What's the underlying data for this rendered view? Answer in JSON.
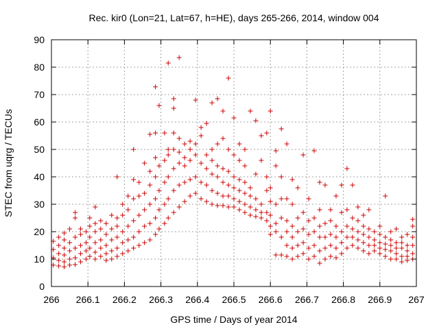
{
  "chart_data": {
    "type": "scatter",
    "title": "Rec. kir0 (Lon=21, Lat=67, h=HE), days 265-266, 2014, window 004",
    "xlabel": "GPS time / Days of year 2014",
    "ylabel": "STEC from uqrg / TECUs",
    "xlim": [
      266,
      267
    ],
    "ylim": [
      0,
      90
    ],
    "xticks": [
      "266",
      "266.1",
      "266.2",
      "266.3",
      "266.4",
      "266.5",
      "266.6",
      "266.7",
      "266.8",
      "266.9",
      "267"
    ],
    "yticks": [
      "0",
      "10",
      "20",
      "30",
      "40",
      "50",
      "60",
      "70",
      "80",
      "90"
    ],
    "grid": true,
    "marker": "+",
    "color": "#cc0000",
    "points": [
      [
        266.005,
        7.8
      ],
      [
        266.005,
        10.5
      ],
      [
        266.005,
        13.5
      ],
      [
        266.005,
        16.5
      ],
      [
        266.02,
        7.5
      ],
      [
        266.02,
        9.5
      ],
      [
        266.02,
        12
      ],
      [
        266.02,
        15
      ],
      [
        266.02,
        18
      ],
      [
        266.035,
        7.2
      ],
      [
        266.035,
        9
      ],
      [
        266.035,
        11.5
      ],
      [
        266.035,
        14
      ],
      [
        266.035,
        17
      ],
      [
        266.035,
        19.5
      ],
      [
        266.05,
        7.8
      ],
      [
        266.05,
        10
      ],
      [
        266.05,
        13
      ],
      [
        266.05,
        16
      ],
      [
        266.05,
        21
      ],
      [
        266.065,
        8
      ],
      [
        266.065,
        10.5
      ],
      [
        266.065,
        14
      ],
      [
        266.065,
        18
      ],
      [
        266.065,
        25
      ],
      [
        266.065,
        27
      ],
      [
        266.08,
        9
      ],
      [
        266.08,
        12
      ],
      [
        266.08,
        15
      ],
      [
        266.08,
        19
      ],
      [
        266.08,
        21
      ],
      [
        266.095,
        10
      ],
      [
        266.095,
        13
      ],
      [
        266.095,
        16
      ],
      [
        266.095,
        20
      ],
      [
        266.105,
        11
      ],
      [
        266.105,
        14
      ],
      [
        266.105,
        18
      ],
      [
        266.105,
        22
      ],
      [
        266.105,
        25
      ],
      [
        266.12,
        10
      ],
      [
        266.12,
        12.5
      ],
      [
        266.12,
        16
      ],
      [
        266.12,
        20
      ],
      [
        266.12,
        23
      ],
      [
        266.12,
        29
      ],
      [
        266.135,
        11
      ],
      [
        266.135,
        14
      ],
      [
        266.135,
        17
      ],
      [
        266.135,
        21
      ],
      [
        266.135,
        24
      ],
      [
        266.15,
        9.5
      ],
      [
        266.15,
        12
      ],
      [
        266.15,
        15
      ],
      [
        266.15,
        19
      ],
      [
        266.15,
        23
      ],
      [
        266.165,
        10
      ],
      [
        266.165,
        13
      ],
      [
        266.165,
        17
      ],
      [
        266.165,
        21
      ],
      [
        266.165,
        26
      ],
      [
        266.18,
        11
      ],
      [
        266.18,
        14
      ],
      [
        266.18,
        18
      ],
      [
        266.18,
        22
      ],
      [
        266.18,
        25
      ],
      [
        266.18,
        40
      ],
      [
        266.195,
        12
      ],
      [
        266.195,
        16
      ],
      [
        266.195,
        20
      ],
      [
        266.195,
        26
      ],
      [
        266.195,
        30
      ],
      [
        266.21,
        13
      ],
      [
        266.21,
        17
      ],
      [
        266.21,
        22
      ],
      [
        266.21,
        28
      ],
      [
        266.21,
        33
      ],
      [
        266.225,
        14
      ],
      [
        266.225,
        18
      ],
      [
        266.225,
        24
      ],
      [
        266.225,
        32
      ],
      [
        266.225,
        39
      ],
      [
        266.225,
        50
      ],
      [
        266.24,
        15
      ],
      [
        266.24,
        20
      ],
      [
        266.24,
        26
      ],
      [
        266.24,
        33
      ],
      [
        266.24,
        38
      ],
      [
        266.255,
        16
      ],
      [
        266.255,
        22
      ],
      [
        266.255,
        28
      ],
      [
        266.255,
        34
      ],
      [
        266.255,
        45
      ],
      [
        266.27,
        17
      ],
      [
        266.27,
        23
      ],
      [
        266.27,
        30
      ],
      [
        266.27,
        37
      ],
      [
        266.27,
        42
      ],
      [
        266.27,
        55.5
      ],
      [
        266.285,
        19
      ],
      [
        266.285,
        25
      ],
      [
        266.285,
        32
      ],
      [
        266.285,
        40
      ],
      [
        266.285,
        47
      ],
      [
        266.285,
        56
      ],
      [
        266.285,
        72.8
      ],
      [
        266.295,
        21
      ],
      [
        266.295,
        28
      ],
      [
        266.295,
        35
      ],
      [
        266.295,
        44
      ],
      [
        266.295,
        66
      ],
      [
        266.31,
        23
      ],
      [
        266.31,
        30
      ],
      [
        266.31,
        38
      ],
      [
        266.31,
        46
      ],
      [
        266.31,
        56
      ],
      [
        266.32,
        25
      ],
      [
        266.32,
        32
      ],
      [
        266.32,
        40
      ],
      [
        266.32,
        48
      ],
      [
        266.32,
        50
      ],
      [
        266.32,
        81.5
      ],
      [
        266.335,
        27
      ],
      [
        266.335,
        35
      ],
      [
        266.335,
        43
      ],
      [
        266.335,
        50
      ],
      [
        266.335,
        56
      ],
      [
        266.335,
        65
      ],
      [
        266.335,
        68.5
      ],
      [
        266.35,
        29
      ],
      [
        266.35,
        37
      ],
      [
        266.35,
        45
      ],
      [
        266.35,
        49
      ],
      [
        266.35,
        54
      ],
      [
        266.35,
        83.5
      ],
      [
        266.365,
        31
      ],
      [
        266.365,
        38
      ],
      [
        266.365,
        44
      ],
      [
        266.365,
        47
      ],
      [
        266.365,
        52
      ],
      [
        266.38,
        33
      ],
      [
        266.38,
        39
      ],
      [
        266.38,
        46
      ],
      [
        266.38,
        50
      ],
      [
        266.38,
        53
      ],
      [
        266.395,
        34
      ],
      [
        266.395,
        40
      ],
      [
        266.395,
        48
      ],
      [
        266.395,
        52
      ],
      [
        266.395,
        68
      ],
      [
        266.41,
        32
      ],
      [
        266.41,
        38
      ],
      [
        266.41,
        45
      ],
      [
        266.41,
        55
      ],
      [
        266.41,
        58
      ],
      [
        266.425,
        31
      ],
      [
        266.425,
        37
      ],
      [
        266.425,
        43
      ],
      [
        266.425,
        48
      ],
      [
        266.425,
        59.5
      ],
      [
        266.44,
        30
      ],
      [
        266.44,
        35
      ],
      [
        266.44,
        41
      ],
      [
        266.44,
        46
      ],
      [
        266.44,
        50
      ],
      [
        266.44,
        67
      ],
      [
        266.455,
        29.5
      ],
      [
        266.455,
        34
      ],
      [
        266.455,
        40
      ],
      [
        266.455,
        44
      ],
      [
        266.455,
        52
      ],
      [
        266.455,
        68.5
      ],
      [
        266.47,
        29.5
      ],
      [
        266.47,
        33
      ],
      [
        266.47,
        38
      ],
      [
        266.47,
        43
      ],
      [
        266.47,
        54
      ],
      [
        266.47,
        64
      ],
      [
        266.485,
        29
      ],
      [
        266.485,
        33
      ],
      [
        266.485,
        37
      ],
      [
        266.485,
        42
      ],
      [
        266.485,
        50
      ],
      [
        266.485,
        76
      ],
      [
        266.5,
        29
      ],
      [
        266.5,
        32
      ],
      [
        266.5,
        36
      ],
      [
        266.5,
        40
      ],
      [
        266.5,
        48
      ],
      [
        266.5,
        61.5
      ],
      [
        266.515,
        28
      ],
      [
        266.515,
        31
      ],
      [
        266.515,
        35
      ],
      [
        266.515,
        39
      ],
      [
        266.515,
        46
      ],
      [
        266.515,
        52
      ],
      [
        266.53,
        27
      ],
      [
        266.53,
        30
      ],
      [
        266.53,
        34
      ],
      [
        266.53,
        38
      ],
      [
        266.53,
        44
      ],
      [
        266.53,
        50
      ],
      [
        266.545,
        26
      ],
      [
        266.545,
        29
      ],
      [
        266.545,
        33
      ],
      [
        266.545,
        36
      ],
      [
        266.545,
        64
      ],
      [
        266.56,
        25.5
      ],
      [
        266.56,
        28
      ],
      [
        266.56,
        32
      ],
      [
        266.56,
        41
      ],
      [
        266.56,
        60.5
      ],
      [
        266.575,
        25
      ],
      [
        266.575,
        27
      ],
      [
        266.575,
        30
      ],
      [
        266.575,
        46
      ],
      [
        266.575,
        55
      ],
      [
        266.59,
        24
      ],
      [
        266.59,
        27
      ],
      [
        266.59,
        35
      ],
      [
        266.59,
        40
      ],
      [
        266.59,
        56
      ],
      [
        266.6,
        19
      ],
      [
        266.6,
        22
      ],
      [
        266.6,
        26
      ],
      [
        266.6,
        31
      ],
      [
        266.6,
        36
      ],
      [
        266.6,
        64
      ],
      [
        266.615,
        11.5
      ],
      [
        266.615,
        20
      ],
      [
        266.615,
        23
      ],
      [
        266.615,
        30
      ],
      [
        266.615,
        44
      ],
      [
        266.615,
        49.5
      ],
      [
        266.63,
        11.5
      ],
      [
        266.63,
        18
      ],
      [
        266.63,
        25
      ],
      [
        266.63,
        32
      ],
      [
        266.63,
        40
      ],
      [
        266.63,
        57.5
      ],
      [
        266.645,
        11
      ],
      [
        266.645,
        15
      ],
      [
        266.645,
        20
      ],
      [
        266.645,
        24
      ],
      [
        266.645,
        32
      ],
      [
        266.645,
        52
      ],
      [
        266.66,
        10
      ],
      [
        266.66,
        14
      ],
      [
        266.66,
        18
      ],
      [
        266.66,
        22
      ],
      [
        266.66,
        30
      ],
      [
        266.66,
        39
      ],
      [
        266.675,
        11
      ],
      [
        266.675,
        15
      ],
      [
        266.675,
        20
      ],
      [
        266.675,
        25
      ],
      [
        266.675,
        36
      ],
      [
        266.69,
        12
      ],
      [
        266.69,
        16
      ],
      [
        266.69,
        21
      ],
      [
        266.69,
        27
      ],
      [
        266.69,
        48
      ],
      [
        266.705,
        10
      ],
      [
        266.705,
        14
      ],
      [
        266.705,
        19
      ],
      [
        266.705,
        24
      ],
      [
        266.705,
        32
      ],
      [
        266.72,
        11
      ],
      [
        266.72,
        15
      ],
      [
        266.72,
        20
      ],
      [
        266.72,
        25
      ],
      [
        266.72,
        49.5
      ],
      [
        266.735,
        8.5
      ],
      [
        266.735,
        13
      ],
      [
        266.735,
        18
      ],
      [
        266.735,
        22
      ],
      [
        266.735,
        28
      ],
      [
        266.735,
        38
      ],
      [
        266.75,
        10
      ],
      [
        266.75,
        14
      ],
      [
        266.75,
        18
      ],
      [
        266.75,
        23
      ],
      [
        266.75,
        37
      ],
      [
        266.765,
        11
      ],
      [
        266.765,
        15
      ],
      [
        266.765,
        19
      ],
      [
        266.765,
        24
      ],
      [
        266.765,
        28
      ],
      [
        266.78,
        10.5
      ],
      [
        266.78,
        14
      ],
      [
        266.78,
        18
      ],
      [
        266.78,
        22
      ],
      [
        266.78,
        33
      ],
      [
        266.795,
        12
      ],
      [
        266.795,
        16
      ],
      [
        266.795,
        20
      ],
      [
        266.795,
        27
      ],
      [
        266.795,
        37
      ],
      [
        266.81,
        14
      ],
      [
        266.81,
        18
      ],
      [
        266.81,
        22
      ],
      [
        266.81,
        28
      ],
      [
        266.81,
        43
      ],
      [
        266.825,
        15
      ],
      [
        266.825,
        18
      ],
      [
        266.825,
        21
      ],
      [
        266.825,
        25
      ],
      [
        266.825,
        37
      ],
      [
        266.84,
        14
      ],
      [
        266.84,
        17
      ],
      [
        266.84,
        20
      ],
      [
        266.84,
        24
      ],
      [
        266.84,
        29
      ],
      [
        266.855,
        13
      ],
      [
        266.855,
        16
      ],
      [
        266.855,
        19
      ],
      [
        266.855,
        22
      ],
      [
        266.855,
        26
      ],
      [
        266.87,
        12
      ],
      [
        266.87,
        15
      ],
      [
        266.87,
        18
      ],
      [
        266.87,
        21
      ],
      [
        266.87,
        28
      ],
      [
        266.885,
        13
      ],
      [
        266.885,
        15
      ],
      [
        266.885,
        17
      ],
      [
        266.885,
        20
      ],
      [
        266.9,
        12
      ],
      [
        266.9,
        14
      ],
      [
        266.9,
        16
      ],
      [
        266.9,
        19
      ],
      [
        266.9,
        22
      ],
      [
        266.915,
        11
      ],
      [
        266.915,
        13.5
      ],
      [
        266.915,
        15.5
      ],
      [
        266.915,
        18
      ],
      [
        266.915,
        33
      ],
      [
        266.93,
        10
      ],
      [
        266.93,
        13
      ],
      [
        266.93,
        15
      ],
      [
        266.93,
        17
      ],
      [
        266.93,
        20
      ],
      [
        266.945,
        10
      ],
      [
        266.945,
        12
      ],
      [
        266.945,
        14
      ],
      [
        266.945,
        16
      ],
      [
        266.945,
        21
      ],
      [
        266.96,
        9
      ],
      [
        266.96,
        11
      ],
      [
        266.96,
        14
      ],
      [
        266.96,
        16
      ],
      [
        266.96,
        18
      ],
      [
        266.975,
        9.5
      ],
      [
        266.975,
        11
      ],
      [
        266.975,
        13
      ],
      [
        266.975,
        15
      ],
      [
        266.975,
        19
      ],
      [
        266.99,
        10
      ],
      [
        266.99,
        12
      ],
      [
        266.99,
        15
      ],
      [
        266.99,
        18
      ],
      [
        266.99,
        22
      ],
      [
        266.99,
        24.5
      ]
    ]
  }
}
